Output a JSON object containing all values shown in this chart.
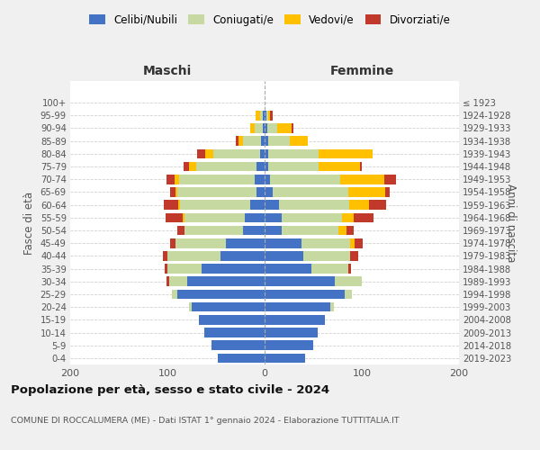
{
  "age_groups": [
    "0-4",
    "5-9",
    "10-14",
    "15-19",
    "20-24",
    "25-29",
    "30-34",
    "35-39",
    "40-44",
    "45-49",
    "50-54",
    "55-59",
    "60-64",
    "65-69",
    "70-74",
    "75-79",
    "80-84",
    "85-89",
    "90-94",
    "95-99",
    "100+"
  ],
  "birth_years": [
    "2019-2023",
    "2014-2018",
    "2009-2013",
    "2004-2008",
    "1999-2003",
    "1994-1998",
    "1989-1993",
    "1984-1988",
    "1979-1983",
    "1974-1978",
    "1969-1973",
    "1964-1968",
    "1959-1963",
    "1954-1958",
    "1949-1953",
    "1944-1948",
    "1939-1943",
    "1934-1938",
    "1929-1933",
    "1924-1928",
    "≤ 1923"
  ],
  "males": {
    "celibi": [
      48,
      55,
      62,
      68,
      75,
      90,
      80,
      65,
      45,
      40,
      22,
      20,
      15,
      8,
      10,
      8,
      5,
      4,
      2,
      2,
      0
    ],
    "coniugati": [
      0,
      0,
      0,
      0,
      3,
      5,
      18,
      35,
      55,
      52,
      60,
      62,
      72,
      82,
      78,
      62,
      48,
      18,
      8,
      3,
      0
    ],
    "vedovi": [
      0,
      0,
      0,
      0,
      0,
      0,
      0,
      0,
      0,
      0,
      0,
      2,
      2,
      2,
      5,
      8,
      8,
      5,
      5,
      4,
      0
    ],
    "divorziati": [
      0,
      0,
      0,
      0,
      0,
      0,
      3,
      3,
      5,
      5,
      8,
      18,
      15,
      5,
      8,
      5,
      8,
      3,
      0,
      0,
      0
    ]
  },
  "females": {
    "nubili": [
      42,
      50,
      55,
      62,
      68,
      82,
      72,
      48,
      40,
      38,
      18,
      18,
      15,
      8,
      6,
      4,
      4,
      4,
      3,
      2,
      0
    ],
    "coniugate": [
      0,
      0,
      0,
      0,
      3,
      8,
      28,
      38,
      48,
      50,
      58,
      62,
      72,
      78,
      72,
      52,
      52,
      22,
      10,
      2,
      0
    ],
    "vedove": [
      0,
      0,
      0,
      0,
      0,
      0,
      0,
      0,
      0,
      5,
      8,
      12,
      20,
      38,
      45,
      42,
      55,
      18,
      15,
      2,
      0
    ],
    "divorziate": [
      0,
      0,
      0,
      0,
      0,
      0,
      0,
      3,
      8,
      8,
      8,
      20,
      18,
      5,
      12,
      2,
      0,
      0,
      2,
      2,
      0
    ]
  },
  "colors": {
    "celibi": "#4472c4",
    "coniugati": "#c5d9a0",
    "vedovi": "#ffc000",
    "divorziati": "#c0392b"
  },
  "title": "Popolazione per età, sesso e stato civile - 2024",
  "subtitle": "COMUNE DI ROCCALUMERA (ME) - Dati ISTAT 1° gennaio 2024 - Elaborazione TUTTITALIA.IT",
  "xlabel_left": "Maschi",
  "xlabel_right": "Femmine",
  "ylabel_left": "Fasce di età",
  "ylabel_right": "Anni di nascita",
  "xlim": 200,
  "bg_color": "#f0f0f0",
  "plot_bg": "#ffffff",
  "legend_labels": [
    "Celibi/Nubili",
    "Coniugati/e",
    "Vedovi/e",
    "Divorziati/e"
  ]
}
